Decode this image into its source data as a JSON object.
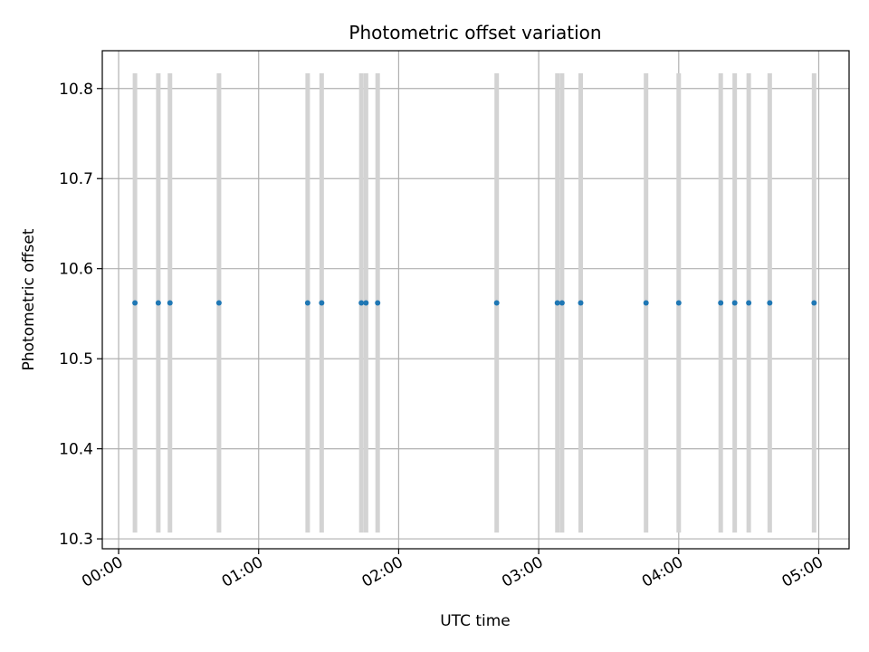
{
  "chart_data": {
    "type": "scatter",
    "title": "Photometric offset variation",
    "xlabel": "UTC time",
    "ylabel": "Photometric offset",
    "x_unit": "HH:MM",
    "xlim": [
      "-00:07",
      "05:13"
    ],
    "ylim": [
      10.289,
      10.842
    ],
    "x_ticks": [
      "00:00",
      "01:00",
      "02:00",
      "03:00",
      "04:00",
      "05:00"
    ],
    "y_ticks": [
      10.3,
      10.4,
      10.5,
      10.6,
      10.7,
      10.8
    ],
    "y_tick_labels": [
      "10.3",
      "10.4",
      "10.5",
      "10.6",
      "10.7",
      "10.8"
    ],
    "grid": true,
    "legend": "none",
    "colors": {
      "points": "#1f77b4",
      "bands": "#d3d3d3",
      "grid": "#b0b0b0"
    },
    "band_y_range": [
      10.307,
      10.817
    ],
    "series": [
      {
        "x": [
          "00:07",
          "00:17",
          "00:22",
          "00:43",
          "01:21",
          "01:27",
          "01:44",
          "01:46",
          "01:51",
          "02:42",
          "03:08",
          "03:10",
          "03:18",
          "03:46",
          "04:00",
          "04:18",
          "04:24",
          "04:30",
          "04:39",
          "04:58"
        ],
        "values": [
          10.562,
          10.562,
          10.562,
          10.562,
          10.562,
          10.562,
          10.562,
          10.562,
          10.562,
          10.562,
          10.562,
          10.562,
          10.562,
          10.562,
          10.562,
          10.562,
          10.562,
          10.562,
          10.562,
          10.562
        ]
      }
    ]
  }
}
